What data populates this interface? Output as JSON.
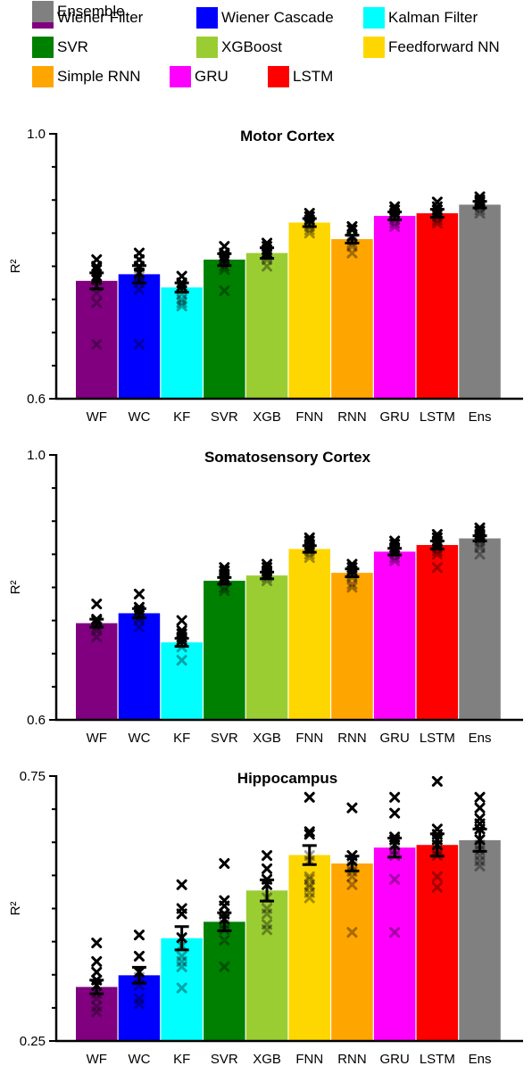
{
  "legend": {
    "items": [
      {
        "label": "Wiener Filter",
        "color": "#800080"
      },
      {
        "label": "Wiener Cascade",
        "color": "#0000ff"
      },
      {
        "label": "Kalman Filter",
        "color": "#00ffff"
      },
      {
        "label": "SVR",
        "color": "#008000"
      },
      {
        "label": "XGBoost",
        "color": "#9acd32"
      },
      {
        "label": "Feedforward NN",
        "color": "#ffd700"
      },
      {
        "label": "Simple RNN",
        "color": "#ffa500"
      },
      {
        "label": "GRU",
        "color": "#ff00ff"
      },
      {
        "label": "LSTM",
        "color": "#ff0000"
      },
      {
        "label": "Ensemble",
        "color": "#808080"
      }
    ]
  },
  "chart_data": [
    {
      "type": "bar",
      "title": "Motor Cortex",
      "ylabel": "R²",
      "ylim": [
        0.6,
        1.0
      ],
      "yticks": [
        "0.6",
        "1.0"
      ],
      "categories": [
        "WF",
        "WC",
        "KF",
        "SVR",
        "XGB",
        "FNN",
        "RNN",
        "GRU",
        "LSTM",
        "Ens"
      ],
      "colors": [
        "#800080",
        "#0000ff",
        "#00ffff",
        "#008000",
        "#9acd32",
        "#ffd700",
        "#ffa500",
        "#ff00ff",
        "#ff0000",
        "#808080"
      ],
      "values": [
        0.778,
        0.788,
        0.768,
        0.81,
        0.82,
        0.866,
        0.841,
        0.876,
        0.88,
        0.893
      ],
      "errors": [
        0.012,
        0.013,
        0.007,
        0.009,
        0.008,
        0.006,
        0.006,
        0.006,
        0.006,
        0.005
      ],
      "points": [
        [
          0.682,
          0.745,
          0.76,
          0.77,
          0.78,
          0.785,
          0.795,
          0.8,
          0.81
        ],
        [
          0.682,
          0.765,
          0.775,
          0.785,
          0.79,
          0.8,
          0.81,
          0.82
        ],
        [
          0.74,
          0.745,
          0.75,
          0.758,
          0.765,
          0.77,
          0.775,
          0.785
        ],
        [
          0.763,
          0.795,
          0.8,
          0.81,
          0.815,
          0.82,
          0.83
        ],
        [
          0.8,
          0.81,
          0.815,
          0.82,
          0.825,
          0.83,
          0.835
        ],
        [
          0.85,
          0.855,
          0.86,
          0.865,
          0.87,
          0.875,
          0.88
        ],
        [
          0.82,
          0.83,
          0.835,
          0.84,
          0.845,
          0.855,
          0.86
        ],
        [
          0.86,
          0.865,
          0.87,
          0.875,
          0.88,
          0.885,
          0.89
        ],
        [
          0.865,
          0.87,
          0.875,
          0.88,
          0.885,
          0.89,
          0.897
        ],
        [
          0.88,
          0.885,
          0.89,
          0.893,
          0.897,
          0.9,
          0.905
        ]
      ]
    },
    {
      "type": "bar",
      "title": "Somatosensory Cortex",
      "ylabel": "R²",
      "ylim": [
        0.6,
        1.0
      ],
      "yticks": [
        "0.6",
        "1.0"
      ],
      "categories": [
        "WF",
        "WC",
        "KF",
        "SVR",
        "XGB",
        "FNN",
        "RNN",
        "GRU",
        "LSTM",
        "Ens"
      ],
      "colors": [
        "#800080",
        "#0000ff",
        "#00ffff",
        "#008000",
        "#9acd32",
        "#ffd700",
        "#ffa500",
        "#ff00ff",
        "#ff0000",
        "#808080"
      ],
      "values": [
        0.746,
        0.761,
        0.717,
        0.81,
        0.818,
        0.858,
        0.822,
        0.854,
        0.864,
        0.874
      ],
      "errors": [
        0.006,
        0.007,
        0.006,
        0.005,
        0.005,
        0.005,
        0.006,
        0.005,
        0.006,
        0.004
      ],
      "points": [
        [
          0.725,
          0.735,
          0.74,
          0.745,
          0.75,
          0.752,
          0.775
        ],
        [
          0.74,
          0.75,
          0.755,
          0.76,
          0.765,
          0.77,
          0.79
        ],
        [
          0.69,
          0.71,
          0.72,
          0.725,
          0.73,
          0.735,
          0.75
        ],
        [
          0.795,
          0.8,
          0.81,
          0.815,
          0.82,
          0.825,
          0.83
        ],
        [
          0.81,
          0.815,
          0.82,
          0.825,
          0.83,
          0.835
        ],
        [
          0.845,
          0.85,
          0.855,
          0.86,
          0.865,
          0.87,
          0.875
        ],
        [
          0.8,
          0.805,
          0.815,
          0.82,
          0.825,
          0.83,
          0.835
        ],
        [
          0.84,
          0.845,
          0.85,
          0.855,
          0.86,
          0.865,
          0.87
        ],
        [
          0.83,
          0.85,
          0.855,
          0.86,
          0.865,
          0.87,
          0.875,
          0.88
        ],
        [
          0.85,
          0.86,
          0.865,
          0.87,
          0.875,
          0.88,
          0.885,
          0.89
        ]
      ]
    },
    {
      "type": "bar",
      "title": "Hippocampus",
      "ylabel": "R²",
      "ylim": [
        0.25,
        0.75
      ],
      "yticks": [
        "0.25",
        "0.75"
      ],
      "categories": [
        "WF",
        "WC",
        "KF",
        "SVR",
        "XGB",
        "FNN",
        "RNN",
        "GRU",
        "LSTM",
        "Ens"
      ],
      "colors": [
        "#800080",
        "#0000ff",
        "#00ffff",
        "#008000",
        "#9acd32",
        "#ffd700",
        "#ffa500",
        "#ff00ff",
        "#ff0000",
        "#808080"
      ],
      "values": [
        0.352,
        0.374,
        0.444,
        0.475,
        0.534,
        0.601,
        0.585,
        0.615,
        0.62,
        0.629
      ],
      "errors": [
        0.013,
        0.015,
        0.022,
        0.017,
        0.02,
        0.018,
        0.014,
        0.018,
        0.021,
        0.021
      ],
      "points": [
        [
          0.305,
          0.315,
          0.33,
          0.34,
          0.355,
          0.365,
          0.38,
          0.4,
          0.435
        ],
        [
          0.32,
          0.33,
          0.355,
          0.37,
          0.38,
          0.41,
          0.45
        ],
        [
          0.35,
          0.39,
          0.4,
          0.41,
          0.43,
          0.445,
          0.49,
          0.5,
          0.545
        ],
        [
          0.39,
          0.44,
          0.46,
          0.47,
          0.48,
          0.49,
          0.505,
          0.515,
          0.585
        ],
        [
          0.46,
          0.47,
          0.49,
          0.5,
          0.52,
          0.545,
          0.555,
          0.575,
          0.6
        ],
        [
          0.52,
          0.53,
          0.54,
          0.545,
          0.555,
          0.56,
          0.59,
          0.6,
          0.64,
          0.645,
          0.71
        ],
        [
          0.455,
          0.545,
          0.56,
          0.57,
          0.58,
          0.59,
          0.6,
          0.69
        ],
        [
          0.455,
          0.555,
          0.6,
          0.61,
          0.62,
          0.63,
          0.635,
          0.68,
          0.71
        ],
        [
          0.54,
          0.56,
          0.6,
          0.61,
          0.62,
          0.63,
          0.64,
          0.65,
          0.74
        ],
        [
          0.58,
          0.59,
          0.6,
          0.61,
          0.62,
          0.63,
          0.65,
          0.66,
          0.67,
          0.69,
          0.71
        ]
      ]
    }
  ]
}
